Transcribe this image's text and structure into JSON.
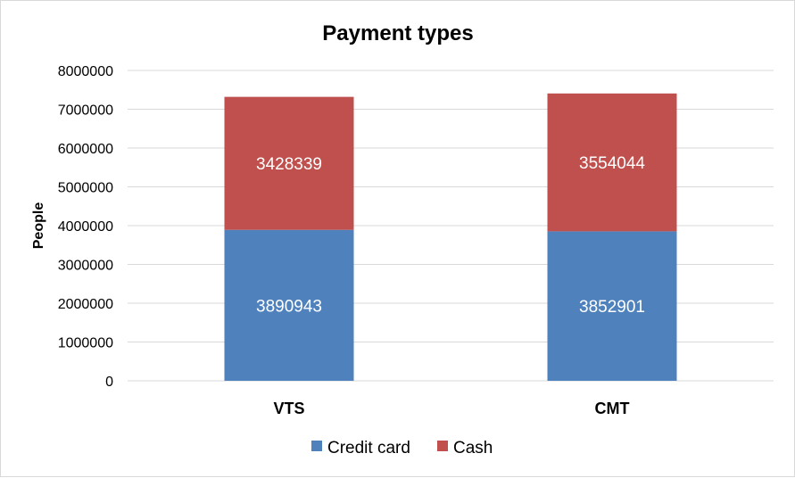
{
  "chart_data": {
    "type": "bar",
    "stacked": true,
    "title": "Payment types",
    "xlabel": "",
    "ylabel": "People",
    "ylim": [
      0,
      8000000
    ],
    "yticks": [
      0,
      1000000,
      2000000,
      3000000,
      4000000,
      5000000,
      6000000,
      7000000,
      8000000
    ],
    "grid": true,
    "legend_position": "bottom",
    "categories": [
      "VTS",
      "CMT"
    ],
    "series": [
      {
        "name": "Credit card",
        "color": "#4f81bd",
        "values": [
          3890943,
          3852901
        ]
      },
      {
        "name": "Cash",
        "color": "#c0504d",
        "values": [
          3428339,
          3554044
        ]
      }
    ]
  }
}
